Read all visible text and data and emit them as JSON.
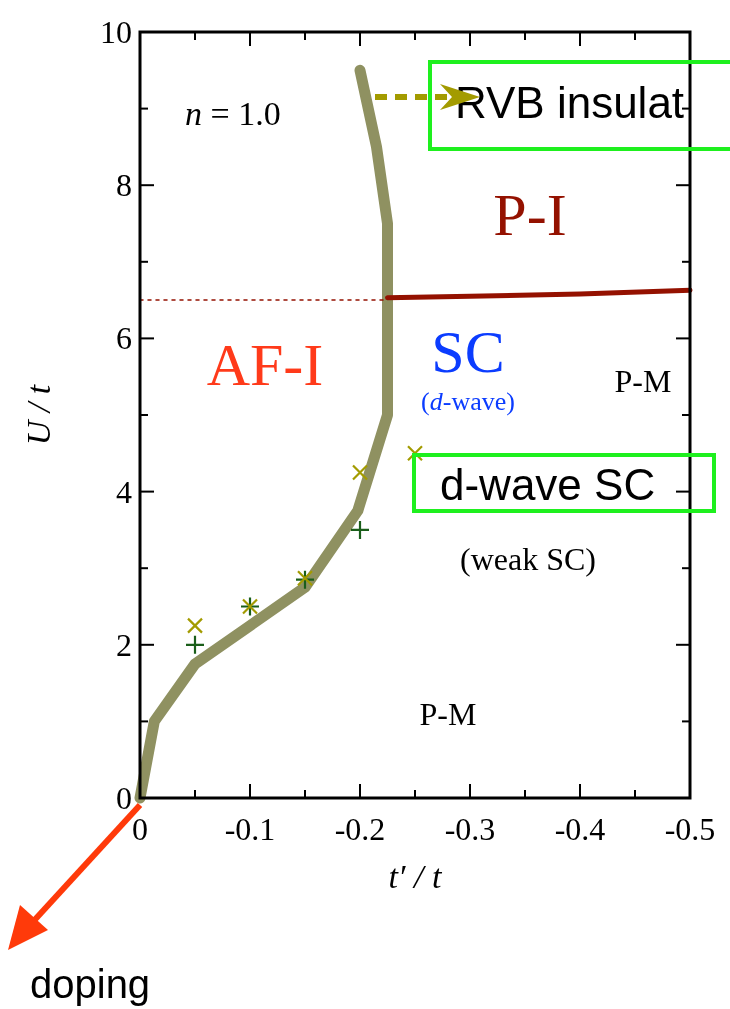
{
  "chart_data": {
    "type": "line",
    "xlabel": "t′ / t",
    "ylabel": "U / t",
    "xlim": [
      0,
      -0.5
    ],
    "ylim": [
      0,
      10
    ],
    "xticks": [
      0,
      {
        "value": -0.05,
        "label": null
      },
      -0.1,
      {
        "value": -0.15,
        "label": null
      },
      -0.2,
      {
        "value": -0.25,
        "label": null
      },
      -0.3,
      {
        "value": -0.35,
        "label": null
      },
      -0.4,
      {
        "value": -0.45,
        "label": null
      },
      -0.5
    ],
    "yticks": [
      0,
      {
        "value": 1,
        "label": null
      },
      2,
      {
        "value": 3,
        "label": null
      },
      4,
      {
        "value": 5,
        "label": null
      },
      6,
      {
        "value": 7,
        "label": null
      },
      8,
      {
        "value": 9,
        "label": null
      },
      10
    ],
    "grid": false,
    "series": [
      {
        "color": "#8f9161",
        "x": [
          0,
          -0.013,
          -0.05,
          -0.1,
          -0.15,
          -0.198,
          -0.225,
          -0.225,
          -0.215,
          -0.2
        ],
        "values": [
          0,
          1,
          1.75,
          2.25,
          2.75,
          3.75,
          5,
          7.5,
          8.5,
          9.5
        ]
      },
      {
        "color": "#941100",
        "x": [
          -0.225,
          -0.3,
          -0.4,
          -0.5
        ],
        "values": [
          6.53,
          6.55,
          6.58,
          6.63
        ]
      },
      {
        "color": "#941100",
        "line_style": "dotted",
        "x": [
          0,
          -0.225
        ],
        "values": [
          6.5,
          6.5
        ]
      },
      {
        "type": "scatter",
        "color": "#1a5e1a",
        "marker": "cross",
        "x": [
          -0.05,
          -0.1,
          -0.15,
          -0.2
        ],
        "values": [
          2,
          2.5,
          2.85,
          3.5
        ]
      },
      {
        "type": "scatter",
        "color": "#a39b00",
        "marker": "x",
        "x": [
          -0.05,
          -0.1,
          -0.15,
          -0.2,
          -0.25
        ],
        "values": [
          2.25,
          2.5,
          2.87,
          4.25,
          4.5
        ]
      }
    ],
    "annotations": [
      "n = 1.0",
      "P-I",
      "AF-I",
      "SC",
      "(d-wave)",
      "P-M",
      "(weak SC)",
      "P-M",
      "RVB insulat",
      "d-wave SC",
      "doping"
    ]
  }
}
